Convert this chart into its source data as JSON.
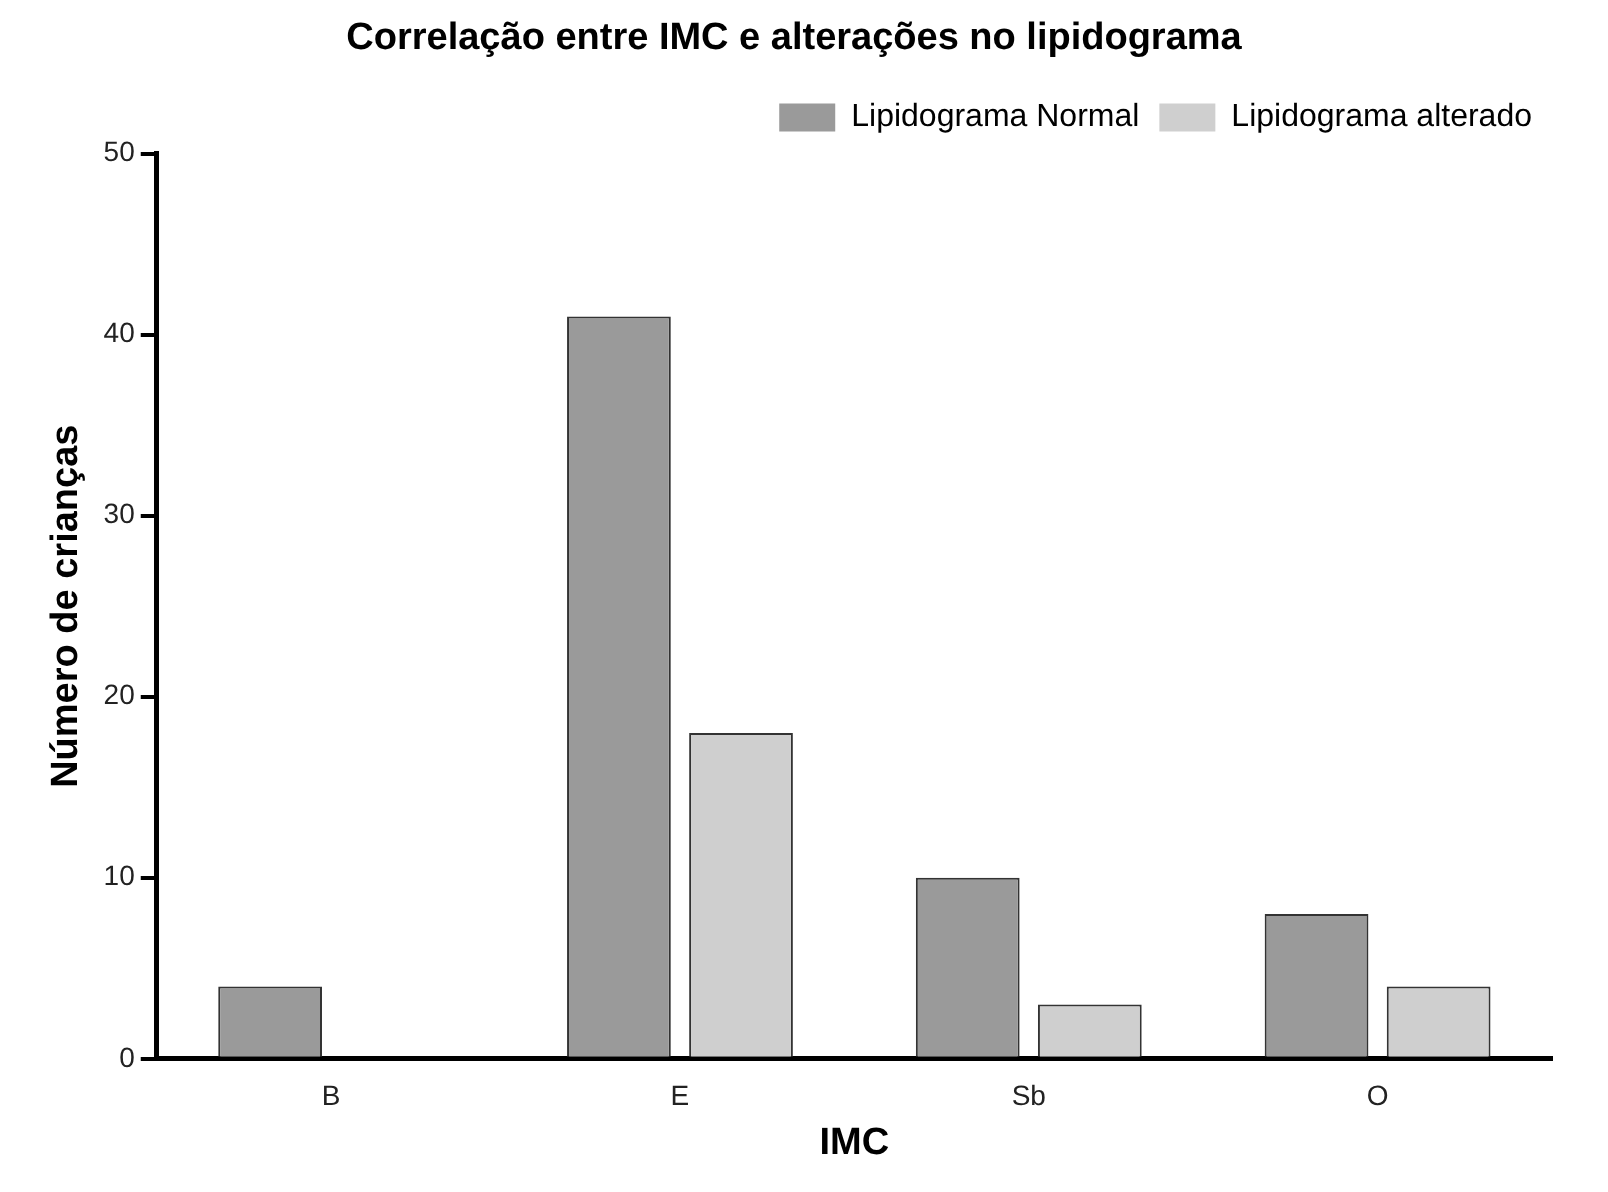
{
  "chart_data": {
    "type": "bar",
    "title": "Correlação entre IMC e alterações no lipidograma",
    "xlabel": "IMC",
    "ylabel": "Número de crianças",
    "categories": [
      "B",
      "E",
      "Sb",
      "O"
    ],
    "series": [
      {
        "name": "Lipidograma Normal",
        "color": "#9a9a9a",
        "values": [
          4,
          41,
          10,
          8
        ]
      },
      {
        "name": "Lipidograma alterado",
        "color": "#cfcfcf",
        "values": [
          0,
          18,
          3,
          4
        ]
      }
    ],
    "ylim": [
      0,
      50
    ],
    "yticks": [
      0,
      10,
      20,
      30,
      40,
      50
    ],
    "grid": false,
    "legend": "top right"
  }
}
